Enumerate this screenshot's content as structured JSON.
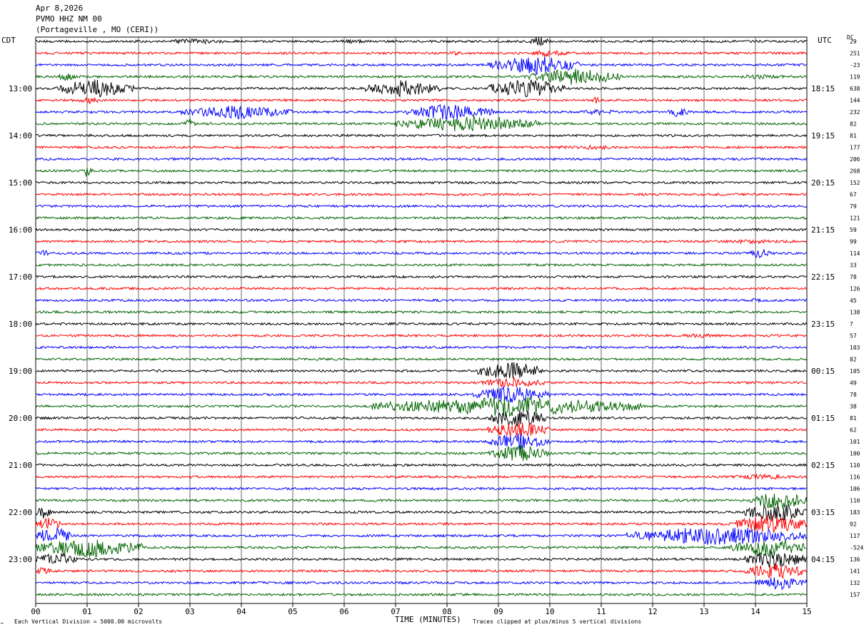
{
  "header": {
    "date": "Apr 8,2026",
    "channel": "PVMO HHZ NM 00",
    "station": "(Portageville , MO (CERI))"
  },
  "left_label": "CDT",
  "right_label": "UTC",
  "dc_label": "DC",
  "footer": {
    "x_title": "TIME (MINUTES)",
    "scale_note": "Each Vertical Division = 5000.00 microvolts",
    "clip_note": "Traces clipped at plus/minus 5 vertical divisions",
    "mark": "⌐"
  },
  "chart_data": {
    "type": "line",
    "title": "PVMO HHZ NM 00",
    "xlabel": "TIME (MINUTES)",
    "ylabel": "",
    "xlim": [
      0,
      15
    ],
    "x_ticks": [
      "00",
      "01",
      "02",
      "03",
      "04",
      "05",
      "06",
      "07",
      "08",
      "09",
      "10",
      "11",
      "12",
      "13",
      "14",
      "15"
    ],
    "minutes_per_trace": 15,
    "trace_count": 48,
    "trace_colors": [
      "#000000",
      "#ff0000",
      "#0000ff",
      "#006400"
    ],
    "left_time_labels": [
      {
        "trace": 4,
        "label": "13:00"
      },
      {
        "trace": 8,
        "label": "14:00"
      },
      {
        "trace": 12,
        "label": "15:00"
      },
      {
        "trace": 16,
        "label": "16:00"
      },
      {
        "trace": 20,
        "label": "17:00"
      },
      {
        "trace": 24,
        "label": "18:00"
      },
      {
        "trace": 28,
        "label": "19:00"
      },
      {
        "trace": 32,
        "label": "20:00"
      },
      {
        "trace": 36,
        "label": "21:00"
      },
      {
        "trace": 40,
        "label": "22:00"
      },
      {
        "trace": 44,
        "label": "23:00"
      }
    ],
    "right_time_labels": [
      {
        "trace": 4,
        "label": "18:15"
      },
      {
        "trace": 8,
        "label": "19:15"
      },
      {
        "trace": 12,
        "label": "20:15"
      },
      {
        "trace": 16,
        "label": "21:15"
      },
      {
        "trace": 20,
        "label": "22:15"
      },
      {
        "trace": 24,
        "label": "23:15"
      },
      {
        "trace": 28,
        "label": "00:15"
      },
      {
        "trace": 32,
        "label": "01:15"
      },
      {
        "trace": 36,
        "label": "02:15"
      },
      {
        "trace": 40,
        "label": "03:15"
      },
      {
        "trace": 44,
        "label": "04:15"
      }
    ],
    "dc_offsets": [
      "29",
      "251",
      "-23",
      "119",
      "638",
      "144",
      "232",
      "82",
      "81",
      "177",
      "206",
      "268",
      "152",
      "67",
      "79",
      "121",
      "59",
      "99",
      "114",
      "33",
      "78",
      "126",
      "45",
      "138",
      "7",
      "57",
      "103",
      "82",
      "105",
      "49",
      "78",
      "38",
      "81",
      "62",
      "101",
      "100",
      "110",
      "116",
      "106",
      "110",
      "183",
      "92",
      "117",
      "-524",
      "136",
      "141",
      "132",
      "157"
    ],
    "events": [
      {
        "trace": 0,
        "start": 2.4,
        "end": 3.8,
        "amp": 4
      },
      {
        "trace": 0,
        "start": 5.8,
        "end": 6.5,
        "amp": 3
      },
      {
        "trace": 0,
        "start": 9.6,
        "end": 10.0,
        "amp": 8
      },
      {
        "trace": 1,
        "start": 8.0,
        "end": 8.3,
        "amp": 3
      },
      {
        "trace": 1,
        "start": 9.6,
        "end": 10.4,
        "amp": 5
      },
      {
        "trace": 2,
        "start": 8.8,
        "end": 10.6,
        "amp": 14
      },
      {
        "trace": 3,
        "start": 0.4,
        "end": 0.8,
        "amp": 6
      },
      {
        "trace": 3,
        "start": 9.6,
        "end": 11.4,
        "amp": 12
      },
      {
        "trace": 3,
        "start": 13.6,
        "end": 14.6,
        "amp": 4
      },
      {
        "trace": 4,
        "start": 0.4,
        "end": 1.9,
        "amp": 14
      },
      {
        "trace": 4,
        "start": 6.4,
        "end": 7.9,
        "amp": 12
      },
      {
        "trace": 4,
        "start": 8.8,
        "end": 10.3,
        "amp": 14
      },
      {
        "trace": 5,
        "start": 0.8,
        "end": 1.3,
        "amp": 5
      },
      {
        "trace": 5,
        "start": 10.8,
        "end": 11.0,
        "amp": 5
      },
      {
        "trace": 6,
        "start": 2.8,
        "end": 5.0,
        "amp": 10
      },
      {
        "trace": 6,
        "start": 7.2,
        "end": 8.9,
        "amp": 12
      },
      {
        "trace": 6,
        "start": 10.6,
        "end": 11.3,
        "amp": 5
      },
      {
        "trace": 6,
        "start": 12.3,
        "end": 12.7,
        "amp": 8
      },
      {
        "trace": 7,
        "start": 2.9,
        "end": 3.1,
        "amp": 8
      },
      {
        "trace": 7,
        "start": 7.0,
        "end": 9.8,
        "amp": 12
      },
      {
        "trace": 9,
        "start": 9.8,
        "end": 11.8,
        "amp": 3
      },
      {
        "trace": 10,
        "start": 5.6,
        "end": 6.0,
        "amp": 3
      },
      {
        "trace": 11,
        "start": 0.9,
        "end": 1.1,
        "amp": 8
      },
      {
        "trace": 17,
        "start": 13.0,
        "end": 15.0,
        "amp": 3
      },
      {
        "trace": 18,
        "start": 0.0,
        "end": 0.3,
        "amp": 5
      },
      {
        "trace": 18,
        "start": 13.9,
        "end": 14.3,
        "amp": 8
      },
      {
        "trace": 22,
        "start": 13.8,
        "end": 14.2,
        "amp": 3
      },
      {
        "trace": 25,
        "start": 12.3,
        "end": 13.5,
        "amp": 3
      },
      {
        "trace": 28,
        "start": 8.6,
        "end": 9.9,
        "amp": 14
      },
      {
        "trace": 29,
        "start": 8.6,
        "end": 9.9,
        "amp": 8
      },
      {
        "trace": 30,
        "start": 8.5,
        "end": 10.0,
        "amp": 12
      },
      {
        "trace": 31,
        "start": 6.5,
        "end": 11.8,
        "amp": 14
      },
      {
        "trace": 32,
        "start": 8.8,
        "end": 10.0,
        "amp": 14
      },
      {
        "trace": 33,
        "start": 8.8,
        "end": 10.0,
        "amp": 12
      },
      {
        "trace": 34,
        "start": 8.8,
        "end": 10.0,
        "amp": 12
      },
      {
        "trace": 35,
        "start": 8.8,
        "end": 10.0,
        "amp": 12
      },
      {
        "trace": 37,
        "start": 13.3,
        "end": 15.0,
        "amp": 4
      },
      {
        "trace": 39,
        "start": 13.9,
        "end": 15.0,
        "amp": 14
      },
      {
        "trace": 40,
        "start": 0.0,
        "end": 0.3,
        "amp": 10
      },
      {
        "trace": 40,
        "start": 13.8,
        "end": 15.0,
        "amp": 14
      },
      {
        "trace": 41,
        "start": 0.0,
        "end": 0.5,
        "amp": 10
      },
      {
        "trace": 41,
        "start": 13.6,
        "end": 15.0,
        "amp": 14
      },
      {
        "trace": 42,
        "start": 0.0,
        "end": 0.7,
        "amp": 14
      },
      {
        "trace": 42,
        "start": 11.5,
        "end": 15.0,
        "amp": 14
      },
      {
        "trace": 43,
        "start": 0.0,
        "end": 2.1,
        "amp": 14
      },
      {
        "trace": 43,
        "start": 13.5,
        "end": 15.0,
        "amp": 14
      },
      {
        "trace": 44,
        "start": 0.0,
        "end": 0.8,
        "amp": 10
      },
      {
        "trace": 44,
        "start": 13.8,
        "end": 15.0,
        "amp": 14
      },
      {
        "trace": 45,
        "start": 0.0,
        "end": 0.3,
        "amp": 6
      },
      {
        "trace": 45,
        "start": 13.8,
        "end": 15.0,
        "amp": 12
      },
      {
        "trace": 46,
        "start": 14.0,
        "end": 15.0,
        "amp": 10
      }
    ]
  }
}
